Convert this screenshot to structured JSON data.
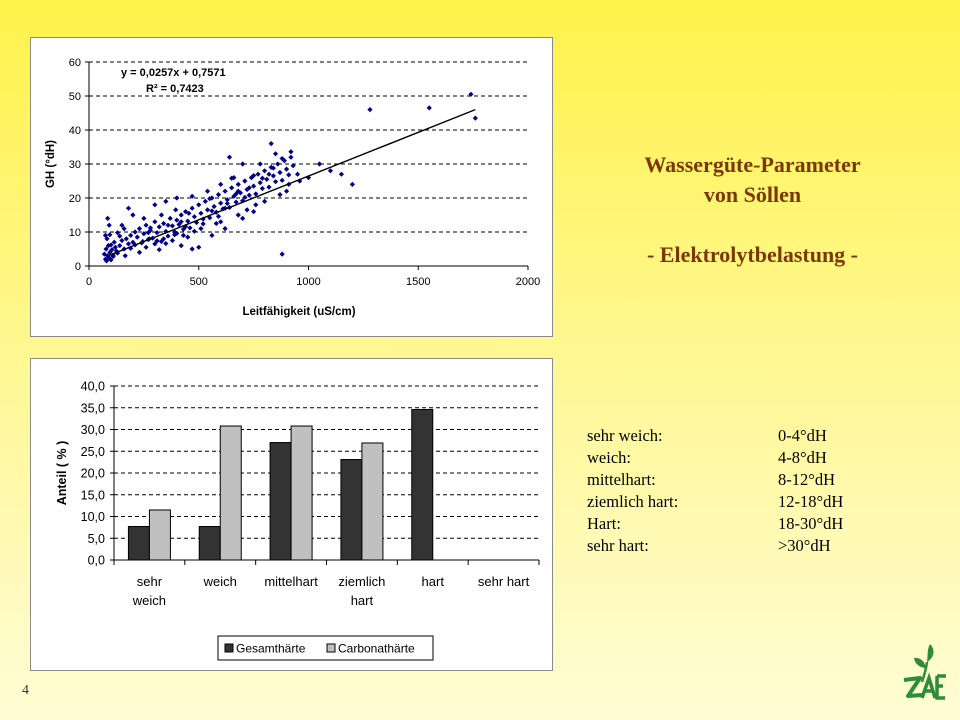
{
  "page": {
    "number": "4"
  },
  "title": {
    "line1": "Wassergüte-Parameter",
    "line2": "von Söllen",
    "line3": "- Elektrolytbelastung -"
  },
  "hardness_classes": [
    {
      "name": "sehr weich:",
      "range": "0-4°dH"
    },
    {
      "name": "weich:",
      "range": "4-8°dH"
    },
    {
      "name": "mittelhart:",
      "range": "8-12°dH"
    },
    {
      "name": "ziemlich hart:",
      "range": "12-18°dH"
    },
    {
      "name": "Hart:",
      "range": "18-30°dH"
    },
    {
      "name": "sehr hart:",
      "range": ">30°dH"
    }
  ],
  "colors": {
    "title": "#7A3800",
    "scatter_points": "#00008B",
    "bar_gesamt": "#333333",
    "bar_carbonat": "#C0C0C0",
    "logo": "#2E8B3A"
  },
  "logo": {
    "icon": "zalf-logo"
  },
  "chart_data": [
    {
      "type": "scatter",
      "xlabel": "Leitfähigkeit (uS/cm)",
      "ylabel": "GH (°dH)",
      "xlim": [
        0,
        2000
      ],
      "ylim": [
        0,
        60
      ],
      "xticks": [
        "0",
        "500",
        "1000",
        "1500",
        "2000"
      ],
      "yticks": [
        "0",
        "10",
        "20",
        "30",
        "40",
        "50",
        "60"
      ],
      "grid": "horizontal dashed",
      "trendline": {
        "slope": 0.0257,
        "intercept": 0.7571,
        "x_range": [
          90,
          1760
        ]
      },
      "annotation": {
        "equation": "y = 0,0257x + 0,7571",
        "r2": "R² = 0,7423"
      },
      "points": [
        [
          75,
          2
        ],
        [
          80,
          1.5
        ],
        [
          85,
          3
        ],
        [
          90,
          2.5
        ],
        [
          70,
          3.5
        ],
        [
          95,
          4
        ],
        [
          100,
          1.8
        ],
        [
          78,
          5
        ],
        [
          110,
          3.2
        ],
        [
          88,
          6
        ],
        [
          82,
          8
        ],
        [
          75,
          9
        ],
        [
          120,
          5.5
        ],
        [
          105,
          4.8
        ],
        [
          130,
          3.8
        ],
        [
          92,
          12
        ],
        [
          85,
          14
        ],
        [
          140,
          6
        ],
        [
          150,
          7.5
        ],
        [
          160,
          5
        ],
        [
          170,
          8
        ],
        [
          180,
          6.5
        ],
        [
          190,
          9
        ],
        [
          200,
          7
        ],
        [
          210,
          10
        ],
        [
          220,
          8.5
        ],
        [
          230,
          11
        ],
        [
          240,
          6.8
        ],
        [
          250,
          9.5
        ],
        [
          260,
          12
        ],
        [
          270,
          7.8
        ],
        [
          280,
          10.5
        ],
        [
          290,
          8.2
        ],
        [
          300,
          13
        ],
        [
          310,
          9.8
        ],
        [
          320,
          11.5
        ],
        [
          330,
          7.2
        ],
        [
          340,
          12.5
        ],
        [
          350,
          10.2
        ],
        [
          360,
          8.8
        ],
        [
          370,
          14
        ],
        [
          380,
          11.8
        ],
        [
          390,
          9.2
        ],
        [
          400,
          13.5
        ],
        [
          410,
          12.2
        ],
        [
          420,
          15
        ],
        [
          430,
          10.8
        ],
        [
          440,
          16
        ],
        [
          450,
          13.2
        ],
        [
          460,
          11.2
        ],
        [
          470,
          17
        ],
        [
          480,
          14.5
        ],
        [
          490,
          12.8
        ],
        [
          500,
          18
        ],
        [
          510,
          15.5
        ],
        [
          520,
          13.8
        ],
        [
          530,
          19
        ],
        [
          540,
          16.5
        ],
        [
          550,
          14.2
        ],
        [
          560,
          20
        ],
        [
          570,
          17.5
        ],
        [
          580,
          15.8
        ],
        [
          590,
          21
        ],
        [
          600,
          18.5
        ],
        [
          610,
          16.8
        ],
        [
          620,
          22
        ],
        [
          630,
          19.5
        ],
        [
          640,
          17.2
        ],
        [
          650,
          23
        ],
        [
          660,
          20.5
        ],
        [
          670,
          18.8
        ],
        [
          680,
          24
        ],
        [
          690,
          21.5
        ],
        [
          700,
          19.2
        ],
        [
          710,
          25
        ],
        [
          720,
          22.5
        ],
        [
          730,
          20.8
        ],
        [
          740,
          26
        ],
        [
          750,
          23.5
        ],
        [
          760,
          21.2
        ],
        [
          770,
          27
        ],
        [
          780,
          24.5
        ],
        [
          790,
          22.8
        ],
        [
          800,
          28
        ],
        [
          810,
          25.5
        ],
        [
          820,
          23.2
        ],
        [
          830,
          29
        ],
        [
          840,
          26.5
        ],
        [
          850,
          24.8
        ],
        [
          860,
          30
        ],
        [
          870,
          27.5
        ],
        [
          880,
          25.2
        ],
        [
          890,
          31
        ],
        [
          900,
          28.5
        ],
        [
          910,
          26.8
        ],
        [
          920,
          32
        ],
        [
          930,
          29.5
        ],
        [
          200,
          15
        ],
        [
          180,
          17
        ],
        [
          250,
          14
        ],
        [
          300,
          18
        ],
        [
          350,
          19
        ],
        [
          400,
          20
        ],
        [
          260,
          5.5
        ],
        [
          320,
          4.8
        ],
        [
          420,
          6
        ],
        [
          500,
          5.5
        ],
        [
          560,
          9
        ],
        [
          620,
          11
        ],
        [
          700,
          14
        ],
        [
          750,
          16
        ],
        [
          640,
          32
        ],
        [
          700,
          30
        ],
        [
          830,
          36
        ],
        [
          850,
          33
        ],
        [
          900,
          22
        ],
        [
          950,
          27
        ],
        [
          1000,
          26
        ],
        [
          1050,
          30
        ],
        [
          1100,
          28
        ],
        [
          1150,
          27
        ],
        [
          1200,
          24
        ],
        [
          1280,
          46
        ],
        [
          1550,
          46.5
        ],
        [
          1740,
          50.5
        ],
        [
          1760,
          43.5
        ],
        [
          880,
          3.5
        ],
        [
          470,
          5
        ],
        [
          380,
          7.5
        ],
        [
          330,
          15
        ],
        [
          230,
          4
        ],
        [
          270,
          9.8
        ],
        [
          160,
          11
        ],
        [
          140,
          8.8
        ],
        [
          600,
          13
        ],
        [
          660,
          26
        ],
        [
          720,
          16.5
        ],
        [
          800,
          19
        ],
        [
          540,
          22
        ],
        [
          470,
          20.5
        ],
        [
          430,
          9
        ],
        [
          360,
          12
        ],
        [
          300,
          6.5
        ],
        [
          280,
          11.2
        ],
        [
          340,
          8
        ],
        [
          390,
          10
        ],
        [
          450,
          8.5
        ],
        [
          510,
          11
        ],
        [
          580,
          12.5
        ],
        [
          620,
          17
        ],
        [
          680,
          15
        ],
        [
          760,
          18
        ],
        [
          820,
          27
        ],
        [
          870,
          21
        ],
        [
          910,
          24
        ],
        [
          960,
          25
        ],
        [
          600,
          24
        ],
        [
          550,
          19.8
        ],
        [
          650,
          25.8
        ],
        [
          780,
          30
        ],
        [
          730,
          23
        ],
        [
          680,
          22
        ],
        [
          420,
          13
        ],
        [
          395,
          16.5
        ],
        [
          455,
          15.5
        ],
        [
          210,
          6.2
        ],
        [
          190,
          5.2
        ],
        [
          245,
          7.2
        ],
        [
          275,
          8
        ],
        [
          310,
          7.4
        ],
        [
          350,
          6.6
        ],
        [
          400,
          9.6
        ],
        [
          440,
          11.6
        ],
        [
          480,
          10.2
        ],
        [
          520,
          12.4
        ],
        [
          560,
          16.2
        ],
        [
          590,
          14.6
        ],
        [
          630,
          18.4
        ],
        [
          670,
          21.2
        ],
        [
          710,
          20.2
        ],
        [
          750,
          26.6
        ],
        [
          790,
          25.8
        ],
        [
          840,
          28.8
        ],
        [
          880,
          31.6
        ],
        [
          920,
          33.6
        ],
        [
          150,
          12
        ],
        [
          130,
          9.8
        ],
        [
          115,
          7
        ],
        [
          100,
          6.2
        ],
        [
          95,
          9.2
        ],
        [
          110,
          2.8
        ],
        [
          125,
          4.4
        ],
        [
          165,
          3
        ]
      ]
    },
    {
      "type": "bar",
      "ylabel": "Anteil (%)",
      "ylim": [
        0,
        40
      ],
      "yticks": [
        "0,0",
        "5,0",
        "10,0",
        "15,0",
        "20,0",
        "25,0",
        "30,0",
        "35,0",
        "40,0"
      ],
      "grid": "horizontal dashed",
      "categories": [
        [
          "sehr",
          "weich"
        ],
        [
          "weich"
        ],
        [
          "mittelhart"
        ],
        [
          "ziemlich",
          "hart"
        ],
        [
          "hart"
        ],
        [
          "sehr hart"
        ]
      ],
      "series": [
        {
          "name": "Gesamthärte",
          "values": [
            7.7,
            7.7,
            27.0,
            23.1,
            34.6,
            0
          ]
        },
        {
          "name": "Carbonathärte",
          "values": [
            11.5,
            30.8,
            30.8,
            26.9,
            0,
            0
          ]
        }
      ],
      "legend": "bottom"
    }
  ]
}
